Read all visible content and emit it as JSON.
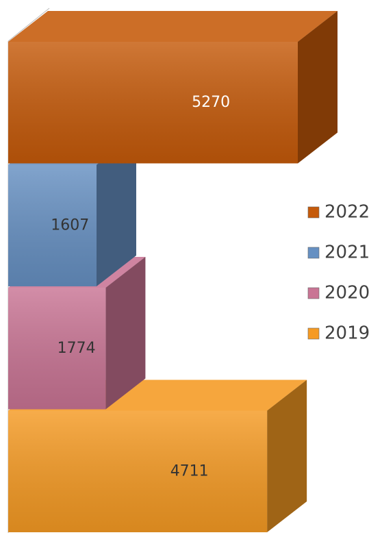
{
  "chart_data": {
    "type": "bar3d",
    "categories": [
      "2019",
      "2020",
      "2021",
      "2022"
    ],
    "values": [
      4711,
      1774,
      1607,
      5270
    ],
    "colors": [
      "#f59a23",
      "#c97494",
      "#6690c2",
      "#c55a0a"
    ],
    "legend": "right"
  }
}
